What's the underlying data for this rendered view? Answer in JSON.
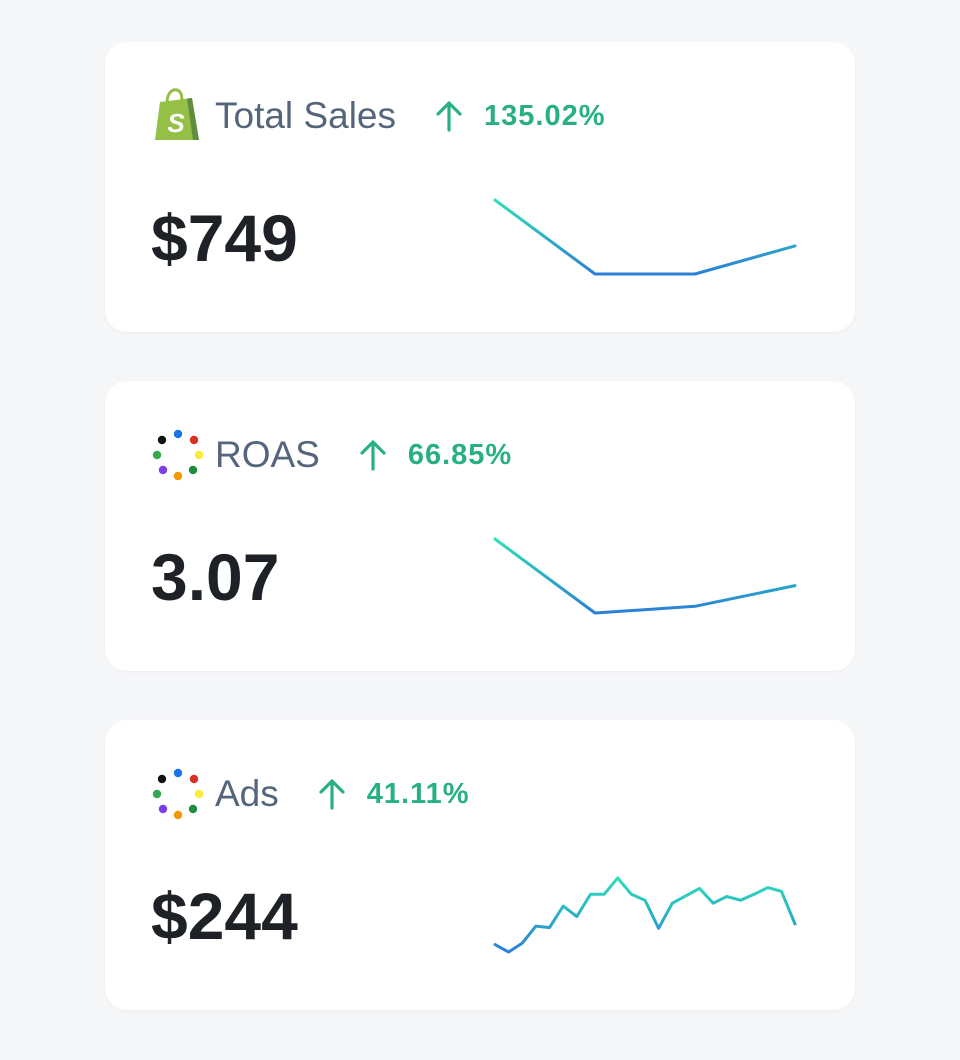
{
  "colors": {
    "background": "#f5f6f8",
    "card": "#ffffff",
    "title": "#55667c",
    "value": "#1e2226",
    "positive": "#28b084",
    "spark_start": "#2ee0b8",
    "spark_end": "#2a7fd6"
  },
  "cards": [
    {
      "title": "Total Sales",
      "icon": "shopify-bag-icon",
      "trend": "up",
      "change": "135.02%",
      "value": "$749",
      "sparkline": [
        1.0,
        0.0,
        0.0,
        0.38
      ]
    },
    {
      "title": "ROAS",
      "icon": "dotted-ring-icon",
      "trend": "up",
      "change": "66.85%",
      "value": "3.07",
      "sparkline": [
        1.0,
        0.0,
        0.09,
        0.37
      ]
    },
    {
      "title": "Ads",
      "icon": "dotted-ring-icon",
      "trend": "up",
      "change": "41.11%",
      "value": "$244",
      "sparkline": [
        0.1,
        0.0,
        0.12,
        0.35,
        0.33,
        0.62,
        0.48,
        0.78,
        0.78,
        1.0,
        0.78,
        0.7,
        0.32,
        0.66,
        0.76,
        0.86,
        0.66,
        0.75,
        0.7,
        0.78,
        0.87,
        0.82,
        0.38
      ]
    }
  ]
}
